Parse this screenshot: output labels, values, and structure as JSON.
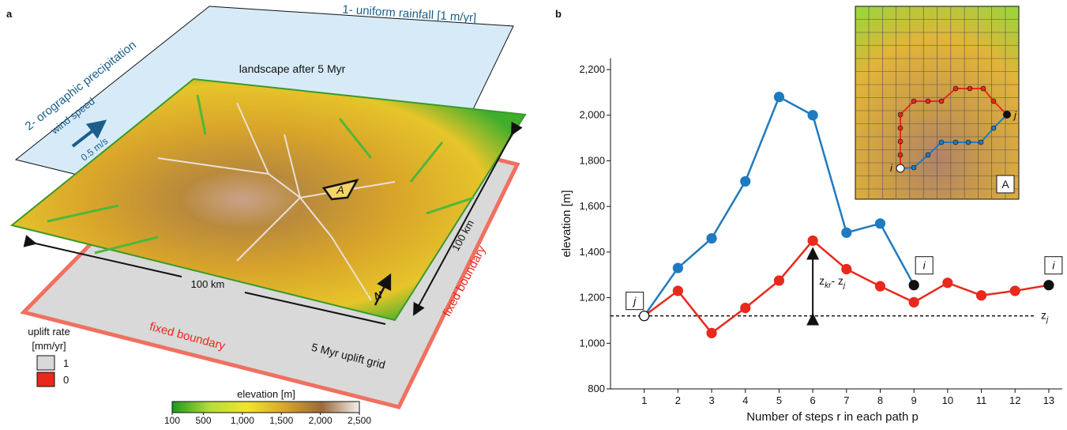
{
  "panel_a": {
    "label": "a",
    "rainfall": "1- uniform rainfall [1 m/yr]",
    "orographic": "2- orographic precipitation",
    "wind": "wind speed",
    "wind_value": "0.5 m/s",
    "landscape": "landscape after 5 Myr",
    "area": "A",
    "width": "100 km",
    "height": "100 km",
    "north": "N",
    "boundary_bottom": "fixed boundary",
    "boundary_right": "fixed boundary",
    "uplift_grid": "5 Myr uplift grid",
    "uplift_title": [
      "uplift rate",
      "[mm/yr]"
    ],
    "uplift_legend": [
      {
        "label": "1",
        "color": "#d9d9d9"
      },
      {
        "label": "0",
        "color": "#e8291c"
      }
    ],
    "colorbar": {
      "title": "elevation [m]",
      "lim": [
        100,
        2500
      ],
      "ticks": [
        100,
        500,
        {
          "value": 1000,
          "label": "1,000"
        },
        {
          "value": 1500,
          "label": "1,500"
        },
        {
          "value": 2000,
          "label": "2,000"
        },
        {
          "value": 2500,
          "label": "2,500"
        }
      ]
    }
  },
  "chart_data": {
    "type": "line",
    "label": "b",
    "x_label": "Number of steps r in each path p",
    "y_label": "elevation [m]",
    "x": [
      1,
      2,
      3,
      4,
      5,
      6,
      7,
      8,
      9,
      10,
      11,
      12,
      13
    ],
    "series": [
      {
        "color": "#1f7bbf",
        "values": [
          1120,
          1330,
          1460,
          1710,
          2080,
          2000,
          1485,
          1525,
          1255,
          null,
          null,
          null,
          null
        ]
      },
      {
        "color": "#e8291c",
        "values": [
          1120,
          1230,
          1045,
          1155,
          1275,
          1450,
          1325,
          1250,
          1180,
          1265,
          1210,
          1230,
          1255
        ]
      }
    ],
    "xlim": [
      0,
      13.4
    ],
    "xticks": [
      1,
      2,
      3,
      4,
      5,
      6,
      7,
      8,
      9,
      10,
      11,
      12,
      13
    ],
    "ylim": [
      800,
      2250
    ],
    "yticks": [
      800,
      {
        "value": 1000,
        "label": "1,000"
      },
      {
        "value": 1200,
        "label": "1,200"
      },
      {
        "value": 1400,
        "label": "1,400"
      },
      {
        "value": 1600,
        "label": "1,600"
      },
      {
        "value": 1800,
        "label": "1,800"
      },
      {
        "value": 2000,
        "label": "2,000"
      },
      {
        "value": 2200,
        "label": "2,200"
      }
    ],
    "reference_line": {
      "value": 1120,
      "label": [
        "z",
        "j"
      ]
    },
    "difference": {
      "label": [
        "z",
        "kr",
        "- z",
        "j"
      ]
    },
    "point_labels": [
      "j",
      "i",
      "i"
    ],
    "inset": {
      "start": "i",
      "end": "j",
      "name": "A"
    }
  }
}
